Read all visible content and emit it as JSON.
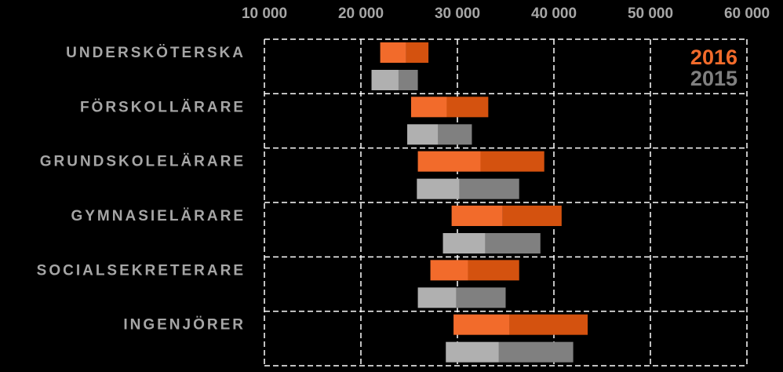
{
  "chart_data": {
    "type": "floating-bar",
    "categories": [
      "UNDERSKÖTERSKA",
      "FÖRSKOLLÄRARE",
      "GRUNDSKOLELÄRARE",
      "GYMNASIELÄRARE",
      "SOCIALSEKRETERARE",
      "INGENJÖRER"
    ],
    "series": [
      {
        "name": "2016",
        "color": "#f26b2b",
        "dark_color": "#d4520f",
        "low": [
          22000,
          25200,
          25900,
          29400,
          27200,
          29600
        ],
        "median": [
          24700,
          28900,
          32400,
          34700,
          31100,
          35400
        ],
        "high": [
          27000,
          33200,
          39000,
          40800,
          36400,
          43500
        ]
      },
      {
        "name": "2015",
        "color": "#b0b0b0",
        "dark_color": "#808080",
        "low": [
          21100,
          24800,
          25800,
          28500,
          25900,
          28800
        ],
        "median": [
          23900,
          28000,
          30200,
          32900,
          29900,
          34300
        ],
        "high": [
          25900,
          31500,
          36400,
          38600,
          35000,
          42000
        ]
      }
    ],
    "xlim": [
      10000,
      60000
    ],
    "xticks": [
      {
        "value": 10000,
        "label": "10 000"
      },
      {
        "value": 20000,
        "label": "20 000"
      },
      {
        "value": 30000,
        "label": "30 000"
      },
      {
        "value": 40000,
        "label": "40 000"
      },
      {
        "value": 50000,
        "label": "50 000"
      },
      {
        "value": 60000,
        "label": "60 000"
      }
    ],
    "grid": true
  }
}
